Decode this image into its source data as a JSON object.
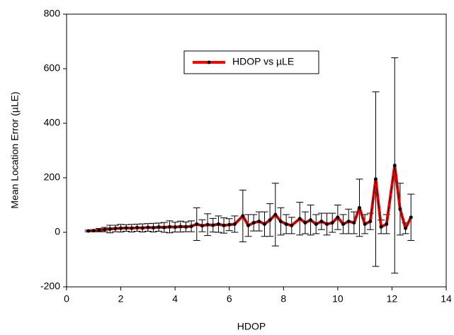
{
  "chart_data": {
    "type": "line",
    "xlabel": "HDOP",
    "ylabel": "Mean Location Error (µLE)",
    "x": [
      0.8,
      1.0,
      1.2,
      1.4,
      1.6,
      1.8,
      2.0,
      2.2,
      2.4,
      2.6,
      2.8,
      3.0,
      3.2,
      3.4,
      3.6,
      3.8,
      4.0,
      4.2,
      4.4,
      4.6,
      4.8,
      5.0,
      5.2,
      5.4,
      5.6,
      5.8,
      6.0,
      6.2,
      6.5,
      6.7,
      6.9,
      7.1,
      7.3,
      7.5,
      7.7,
      7.9,
      8.1,
      8.3,
      8.6,
      8.8,
      9.0,
      9.2,
      9.4,
      9.6,
      9.8,
      10.0,
      10.2,
      10.4,
      10.6,
      10.8,
      11.0,
      11.2,
      11.4,
      11.6,
      11.8,
      12.1,
      12.3,
      12.5,
      12.7
    ],
    "series": [
      {
        "name": "HDOP vs µLE",
        "color": "#ff0000",
        "values": [
          5,
          6,
          8,
          10,
          12,
          14,
          15,
          16,
          15,
          17,
          16,
          18,
          17,
          19,
          18,
          20,
          19,
          21,
          20,
          22,
          30,
          24,
          28,
          26,
          30,
          25,
          28,
          30,
          60,
          25,
          35,
          40,
          30,
          45,
          65,
          40,
          30,
          25,
          50,
          35,
          45,
          30,
          40,
          30,
          35,
          55,
          30,
          40,
          35,
          90,
          30,
          40,
          195,
          20,
          30,
          245,
          85,
          15,
          55
        ],
        "errors": [
          3,
          4,
          6,
          8,
          14,
          12,
          14,
          12,
          14,
          13,
          15,
          14,
          16,
          15,
          18,
          22,
          18,
          20,
          18,
          20,
          60,
          22,
          40,
          25,
          30,
          28,
          22,
          30,
          95,
          40,
          30,
          35,
          45,
          60,
          115,
          50,
          35,
          30,
          60,
          40,
          55,
          35,
          30,
          40,
          35,
          45,
          35,
          45,
          40,
          105,
          35,
          30,
          320,
          25,
          35,
          395,
          95,
          20,
          85
        ]
      }
    ],
    "xlim": [
      0,
      14
    ],
    "xticks": [
      0,
      2,
      4,
      6,
      8,
      10,
      12,
      14
    ],
    "ylim": [
      -200,
      800
    ],
    "yticks": [
      -200,
      0,
      200,
      400,
      600,
      800
    ]
  }
}
